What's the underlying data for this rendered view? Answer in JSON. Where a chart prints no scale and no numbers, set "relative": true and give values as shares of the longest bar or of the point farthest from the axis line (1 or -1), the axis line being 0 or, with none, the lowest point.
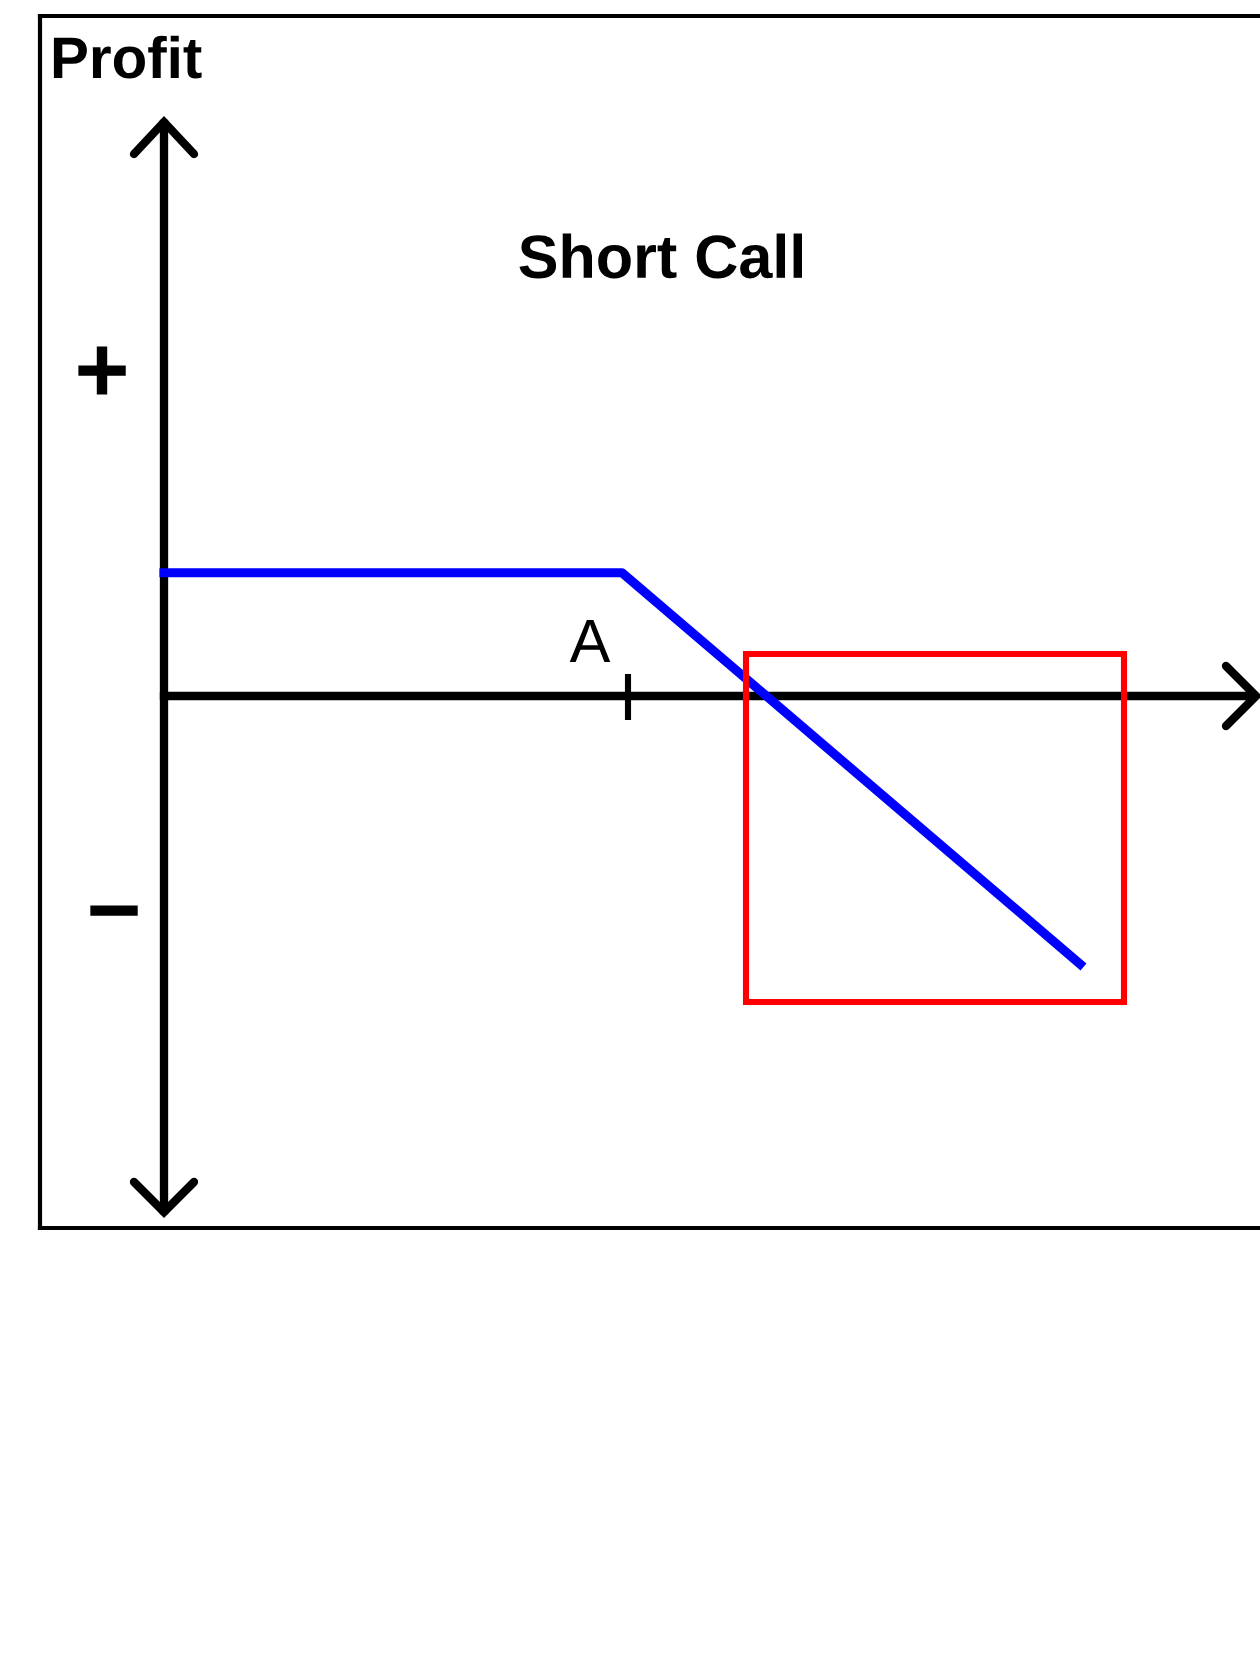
{
  "chart_data": {
    "type": "line",
    "title": "Short Call",
    "categories": [
      null,
      null,
      null
    ],
    "relative": true,
    "series": [
      {
        "color": "#0000ff",
        "values": [
          0.46,
          0.46,
          -1
        ]
      }
    ],
    "annotations": [
      "Profit",
      "+",
      "−",
      "A"
    ]
  }
}
